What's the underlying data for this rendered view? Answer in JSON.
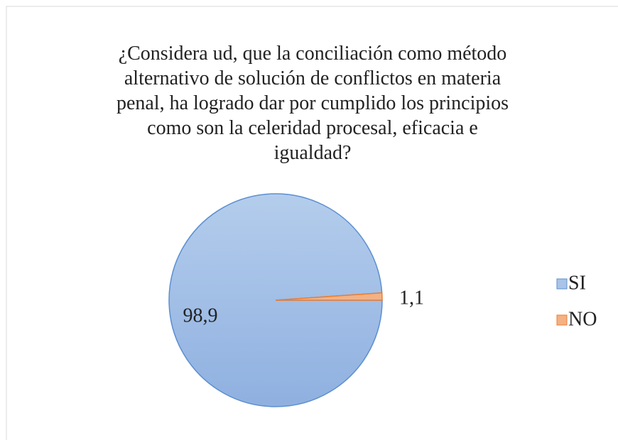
{
  "chart_data": {
    "type": "pie",
    "title": "¿Considera ud, que la conciliación como método alternativo de solución de conflictos en materia penal, ha logrado dar por cumplido los principios como son la celeridad procesal, eficacia e igualdad?",
    "categories": [
      "SI",
      "NO"
    ],
    "values": [
      98.9,
      1.1
    ],
    "value_labels": [
      "98,9",
      "1,1"
    ],
    "colors": [
      "#a9c4e8",
      "#f4b183"
    ],
    "stroke_colors": [
      "#5b8fd0",
      "#ed7d31"
    ],
    "legend": "right"
  }
}
